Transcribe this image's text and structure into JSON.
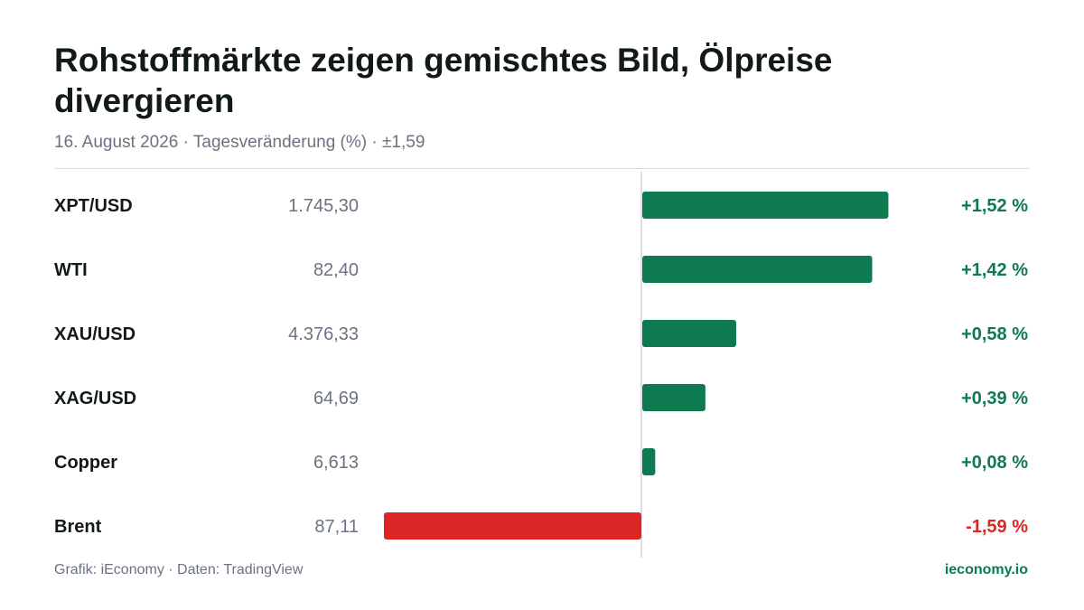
{
  "header": {
    "title": "Rohstoffmärkte zeigen gemischtes Bild, Ölpreise divergieren",
    "subtitle": "16. August 2026 · Tagesveränderung (%) · ±1,59"
  },
  "footer": {
    "source": "Grafik: iEconomy · Daten: TradingView",
    "brand": "ieconomy.io"
  },
  "colors": {
    "positive": "#0e7a4f",
    "negative": "#dc2626",
    "axis": "#d1d5db"
  },
  "chart_data": {
    "type": "bar",
    "orientation": "horizontal",
    "categories": [
      "XPT/USD",
      "WTI",
      "XAU/USD",
      "XAG/USD",
      "Copper",
      "Brent"
    ],
    "prices": [
      "1.745,30",
      "82,40",
      "4.376,33",
      "64,69",
      "6,613",
      "87,11"
    ],
    "values": [
      1.52,
      1.42,
      0.58,
      0.39,
      0.08,
      -1.59
    ],
    "value_labels": [
      "+1,52 %",
      "+1,42 %",
      "+0,58 %",
      "+0,39 %",
      "+0,08 %",
      "-1,59 %"
    ],
    "xlim": [
      -1.59,
      1.59
    ],
    "grid": false,
    "legend": "none"
  }
}
